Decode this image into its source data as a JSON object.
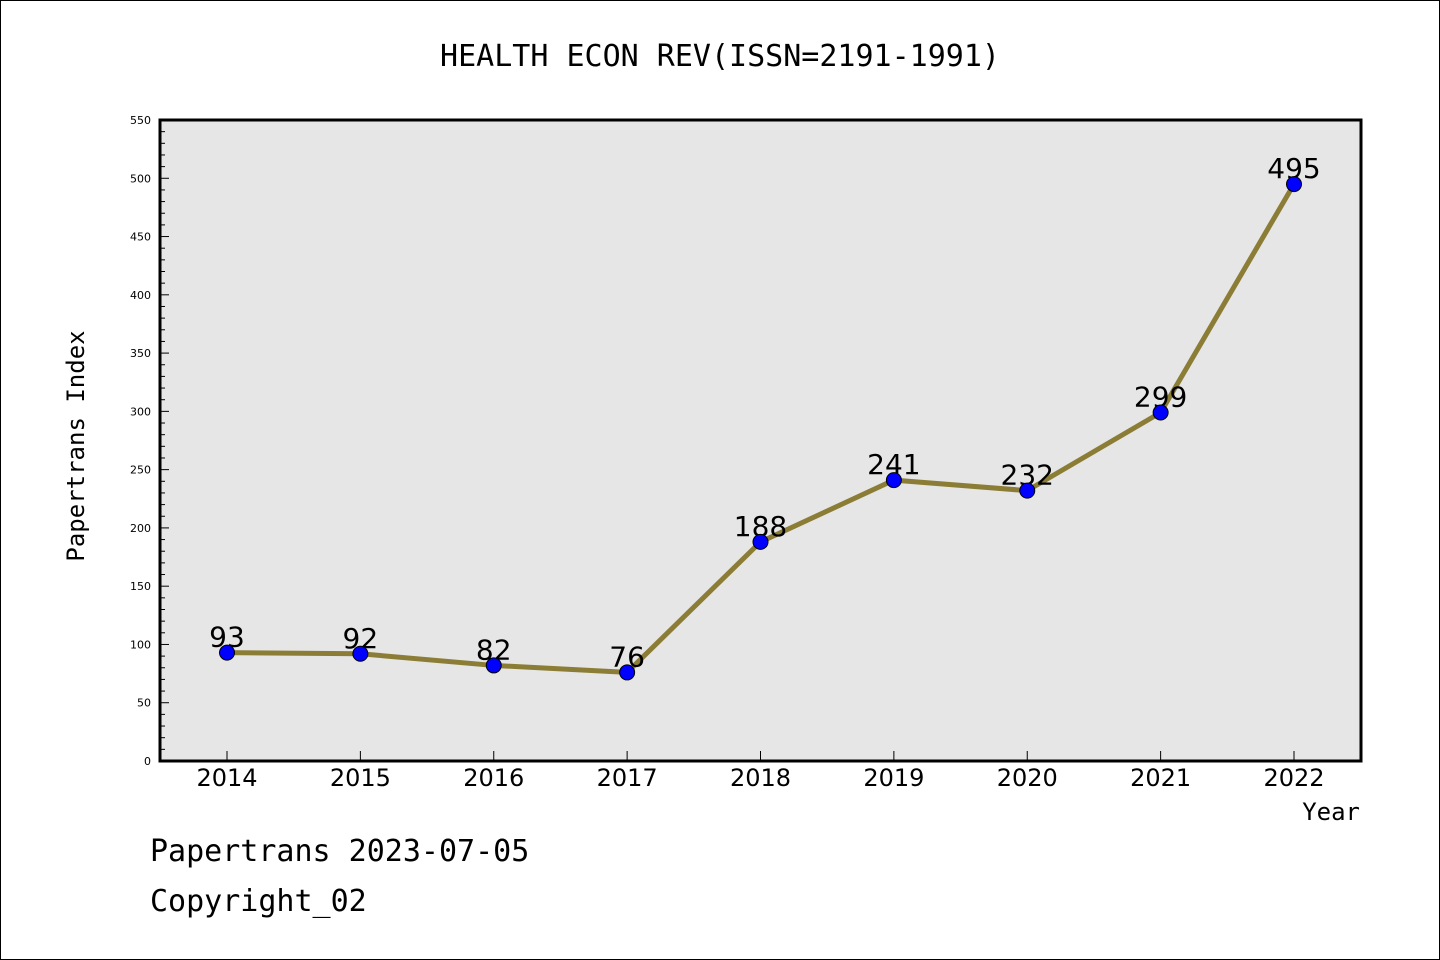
{
  "chart_data": {
    "type": "line",
    "title": "HEALTH ECON REV(ISSN=2191-1991)",
    "xlabel": "Year",
    "ylabel": "Papertrans Index",
    "categories": [
      "2014",
      "2015",
      "2016",
      "2017",
      "2018",
      "2019",
      "2020",
      "2021",
      "2022"
    ],
    "series": [
      {
        "values": [
          93,
          92,
          82,
          76,
          188,
          241,
          232,
          299,
          495
        ]
      }
    ],
    "ylim": [
      0,
      550
    ],
    "yticks": [
      0,
      50,
      100,
      150,
      200,
      250,
      300,
      350,
      400,
      450,
      500,
      550
    ],
    "grid": false,
    "line_color": "#8B7D35",
    "marker_color": "#0000FF",
    "plot_background": "#E6E6E6"
  },
  "footer": {
    "line1": "Papertrans 2023-07-05",
    "line2": "Copyright_02"
  }
}
